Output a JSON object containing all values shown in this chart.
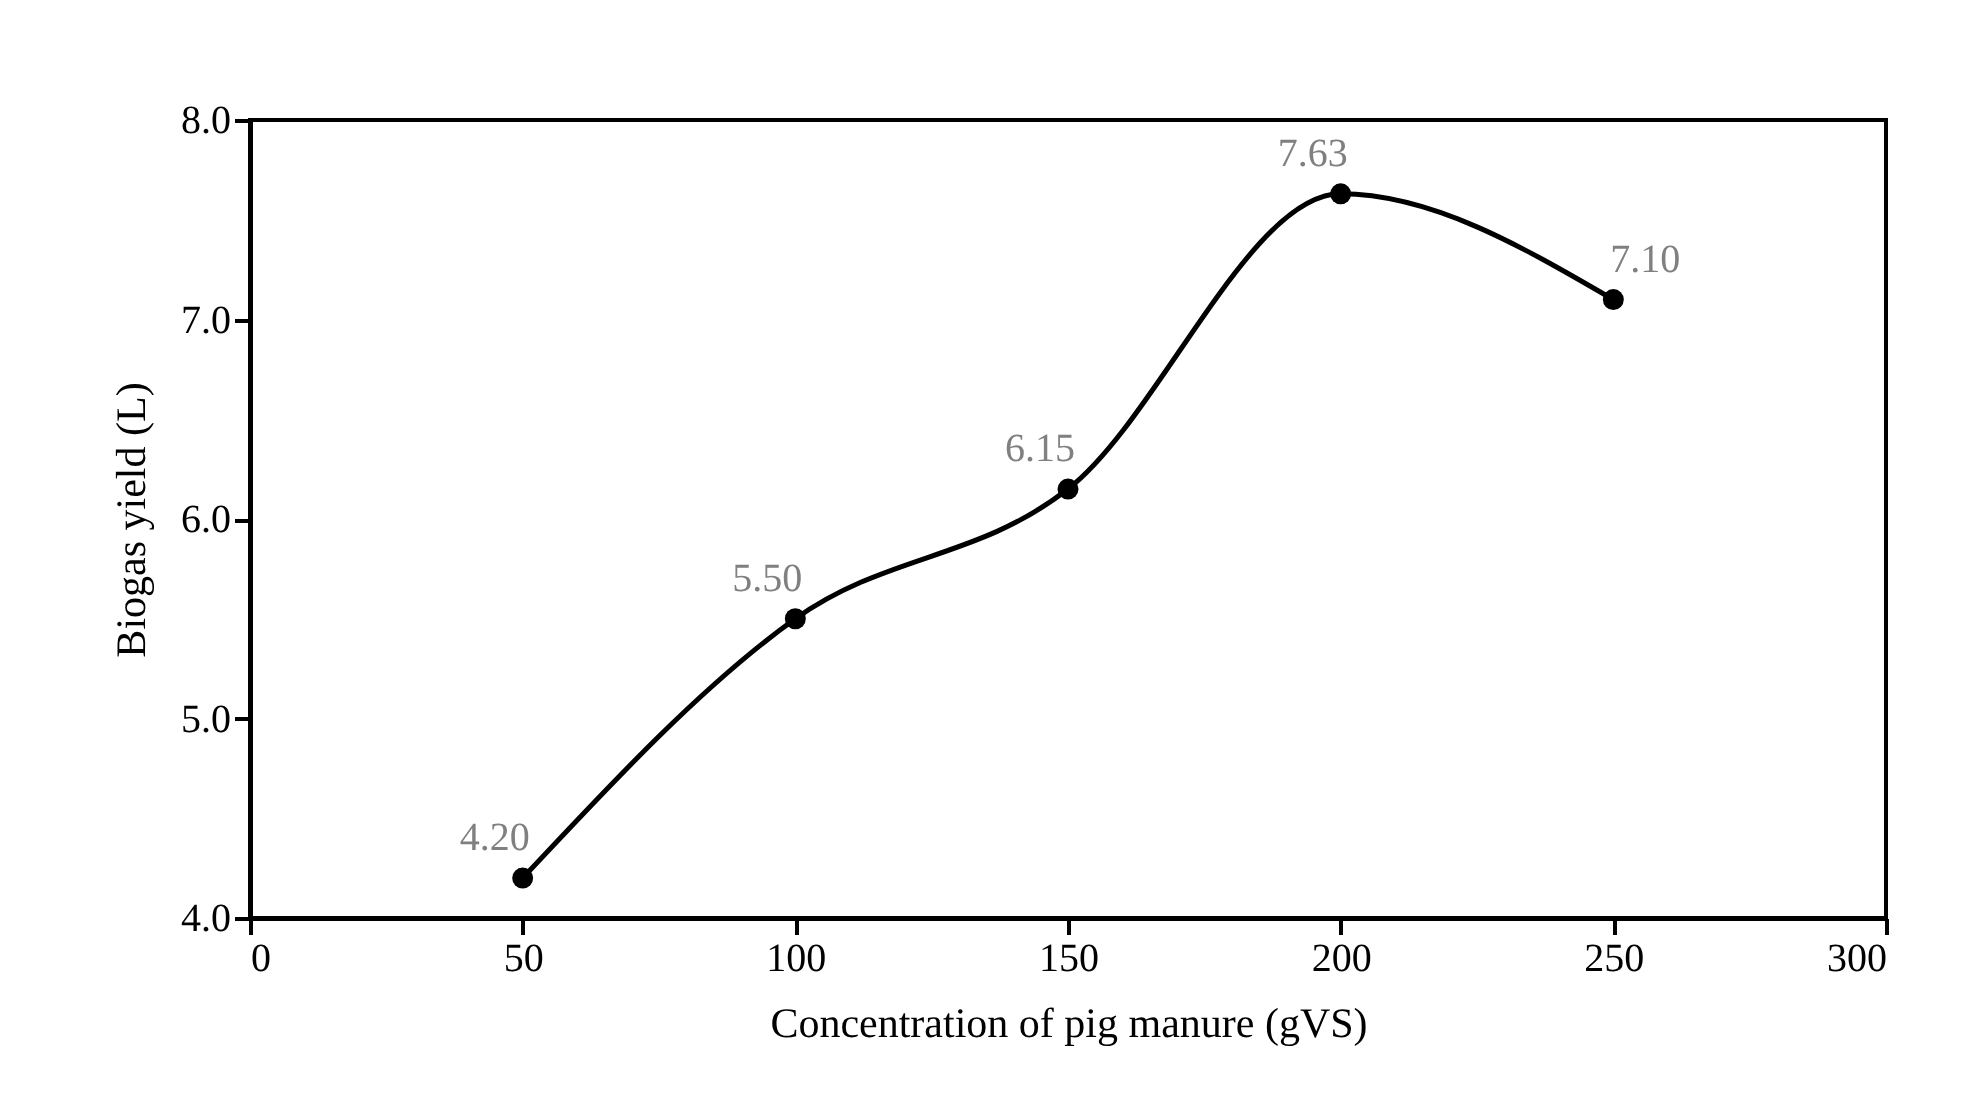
{
  "chart_data": {
    "type": "line",
    "xlabel": "Concentration of pig manure (gVS)",
    "ylabel": "Biogas yield (L)",
    "x": [
      50,
      100,
      150,
      200,
      250
    ],
    "series": [
      {
        "color": "#000000",
        "values": [
          4.2,
          5.5,
          6.15,
          7.63,
          7.1
        ]
      }
    ],
    "value_labels": [
      "4.20",
      "5.50",
      "6.15",
      "7.63",
      "7.10"
    ],
    "xlim": [
      0,
      300
    ],
    "xticks": [
      0,
      50,
      100,
      150,
      200,
      250,
      300
    ],
    "ylim": [
      4,
      8
    ],
    "yticks": [
      {
        "value": 4,
        "label": "4.0"
      },
      {
        "value": 5,
        "label": "5.0"
      },
      {
        "value": 6,
        "label": "6.0"
      },
      {
        "value": 7,
        "label": "7.0"
      },
      {
        "value": 8,
        "label": "8.0"
      }
    ],
    "grid": false,
    "marker": "circle",
    "line_style": "solid"
  }
}
